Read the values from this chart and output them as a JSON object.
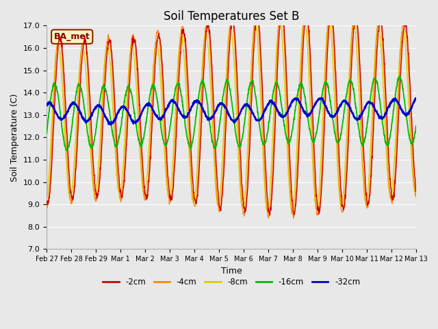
{
  "title": "Soil Temperatures Set B",
  "xlabel": "Time",
  "ylabel": "Soil Temperature (C)",
  "ylim": [
    7.0,
    17.0
  ],
  "yticks": [
    7.0,
    8.0,
    9.0,
    10.0,
    11.0,
    12.0,
    13.0,
    14.0,
    15.0,
    16.0,
    17.0
  ],
  "fig_bg": "#e8e8e8",
  "plot_bg": "#e8e8e8",
  "legend_label": "BA_met",
  "legend_bg": "#f5f5c0",
  "legend_border": "#8b2500",
  "legend_text_color": "#8b0000",
  "series_colors": {
    "-2cm": "#cc0000",
    "-4cm": "#ff8800",
    "-8cm": "#ddcc00",
    "-16cm": "#00bb00",
    "-32cm": "#0000cc"
  },
  "xtick_labels": [
    "Feb 27",
    "Feb 28",
    "Feb 29",
    "Mar 1",
    "Mar 2",
    "Mar 3",
    "Mar 4",
    "Mar 5",
    "Mar 6",
    "Mar 7",
    "Mar 8",
    "Mar 9",
    "Mar 10",
    "Mar 11",
    "Mar 12",
    "Mar 13"
  ]
}
